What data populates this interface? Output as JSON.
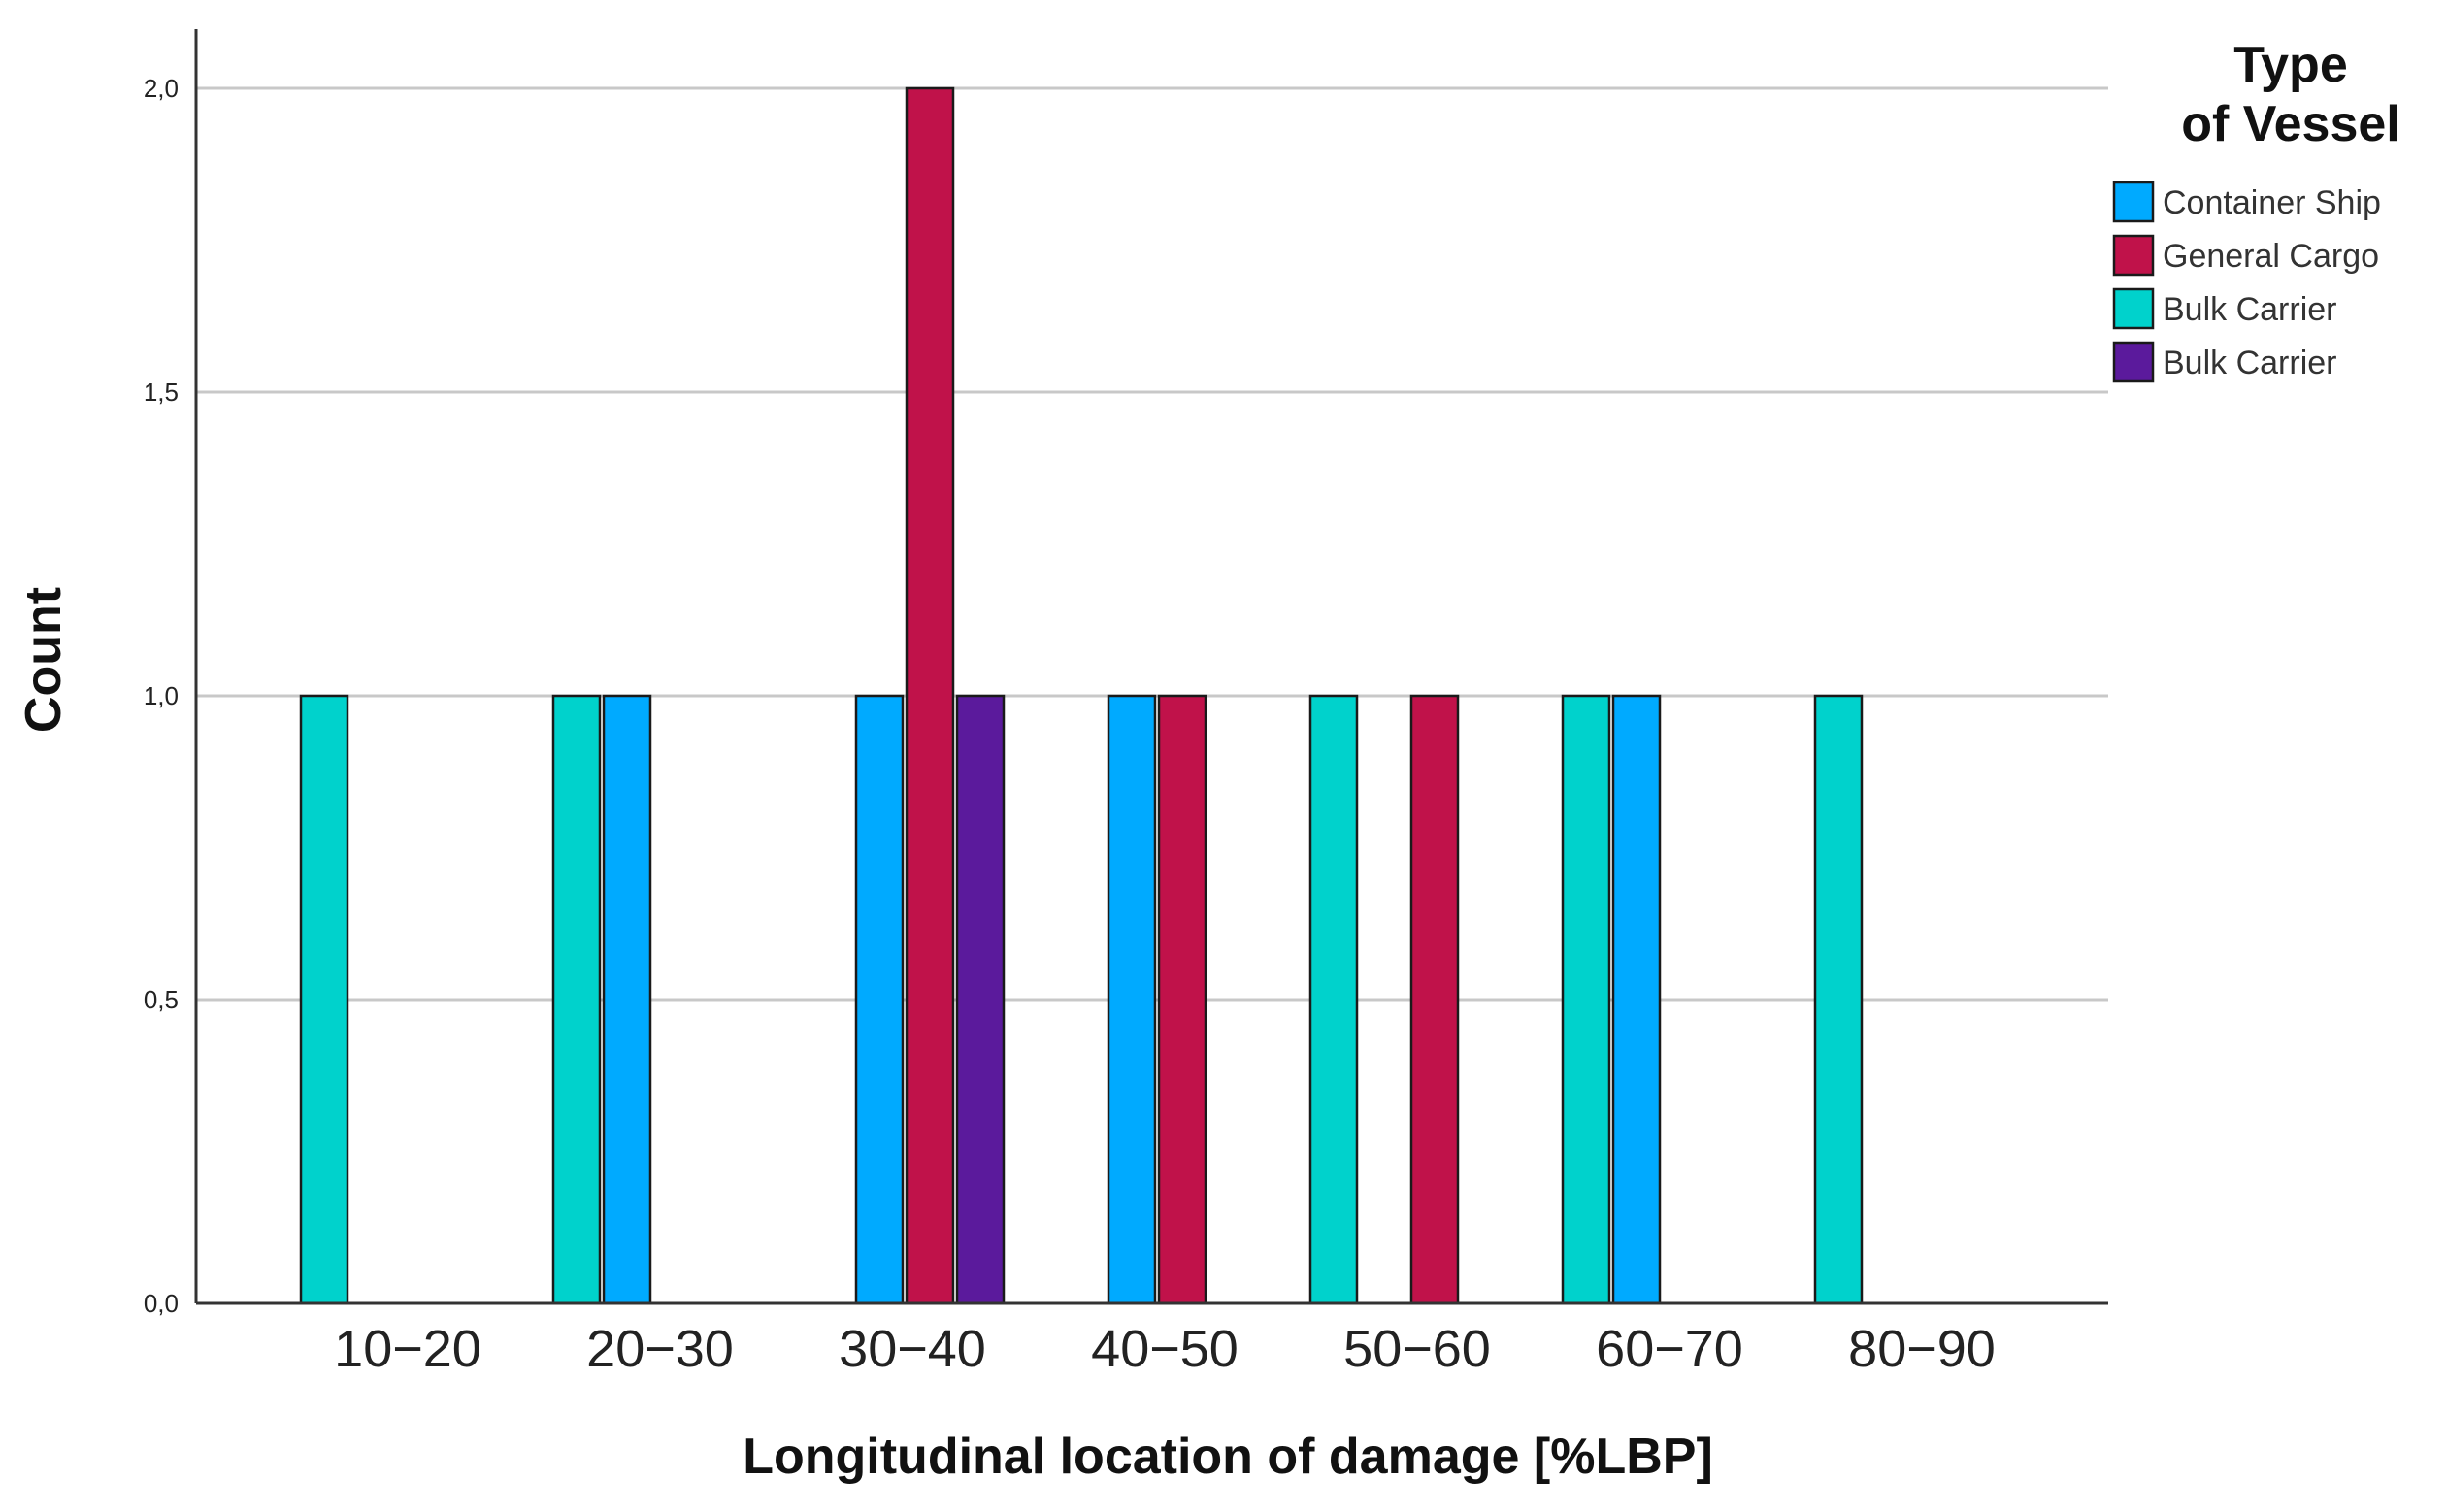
{
  "chart_data": {
    "type": "bar",
    "title": "",
    "xlabel": "Longitudinal location of damage [%LBP]",
    "ylabel": "Count",
    "ylim": [
      0,
      2.1
    ],
    "yticks": [
      "0,0",
      "0,5",
      "1,0",
      "1,5",
      "2,0"
    ],
    "ytick_values": [
      0,
      0.5,
      1.0,
      1.5,
      2.0
    ],
    "grid": "horizontal",
    "categories": [
      "10−20",
      "20−30",
      "30−40",
      "40−50",
      "50−60",
      "60−70",
      "80−90"
    ],
    "legend": {
      "title_line1": "Type",
      "title_line2": "of Vessel",
      "position": "top-right"
    },
    "series": [
      {
        "name": "Container Ship",
        "color": "#00aaff",
        "values": [
          0,
          1,
          1,
          1,
          0,
          1,
          0
        ]
      },
      {
        "name": "General Cargo",
        "color": "#c0124a",
        "values": [
          0,
          0,
          2,
          1,
          1,
          0,
          0
        ]
      },
      {
        "name": "Bulk Carrier",
        "color": "#00d2cc",
        "values": [
          1,
          1,
          0,
          0,
          1,
          1,
          1
        ]
      },
      {
        "name": "Bulk Carrier",
        "color": "#5b1a9c",
        "values": [
          0,
          0,
          1,
          0,
          0,
          0,
          0
        ]
      }
    ]
  }
}
